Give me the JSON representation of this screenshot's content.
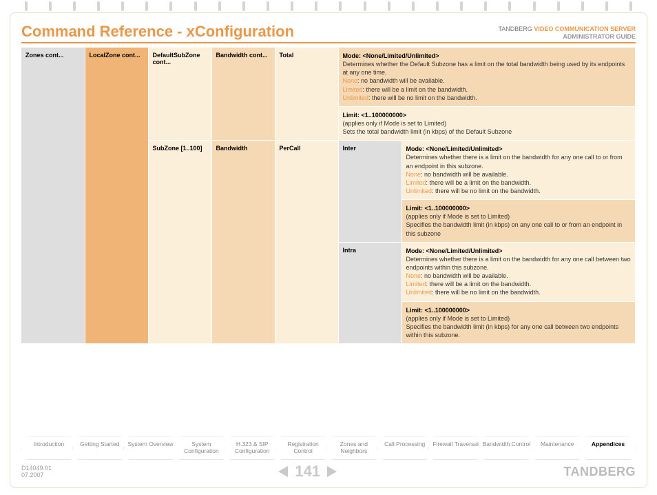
{
  "header": {
    "title": "Command Reference - xConfiguration",
    "product_line": "VIDEO COMMUNICATION SERVER",
    "brand_prefix": "TANDBERG",
    "guide_name": "ADMINISTRATOR GUIDE"
  },
  "colors": {
    "accent": "#e9984a",
    "grey": "#dedede",
    "orange": "#f0b477",
    "cream": "#fcefda",
    "tan": "#f5d9b4",
    "border": "#eadfca",
    "text": "#333333"
  },
  "columns": {
    "c1": "Zones cont...",
    "c2": "LocalZone cont...",
    "c3a": "DefaultSubZone cont...",
    "c3b": "SubZone [1..100]",
    "c4a": "Bandwidth cont...",
    "c4b": "Bandwidth",
    "c5a": "Total",
    "c5b": "PerCall",
    "c6_inter": "Inter",
    "c6_intra": "Intra"
  },
  "blocks": {
    "total_mode": {
      "heading": "Mode: <None/Limited/Unlimited>",
      "body": "Determines whether the Default Subzone has a limit on the total bandwidth being used by its endpoints at any one time.",
      "none": "None",
      "none_txt": ": no bandwidth will be available.",
      "lim": "Limited",
      "lim_txt": ": there will be a limit on the bandwidth.",
      "unl": "Unlimited",
      "unl_txt": ": there will be no limit on the bandwidth."
    },
    "total_limit": {
      "heading": "Limit: <1..100000000>",
      "l1": "(applies only if Mode is set to Limited)",
      "l2": "Sets the total bandwidth limit (in kbps) of the Default Subzone"
    },
    "inter_mode": {
      "heading": "Mode: <None/Limited/Unlimited>",
      "body": "Determines whether there is a limit on the bandwidth for any one call to or from an endpoint in this subzone.",
      "none": "None",
      "none_txt": ": no bandwidth will be available.",
      "lim": "Limited",
      "lim_txt": ": there will be a limit on the bandwidth.",
      "unl": "Unlimited",
      "unl_txt": ": there will be no limit on the bandwidth."
    },
    "inter_limit": {
      "heading": "Limit: <1..100000000>",
      "l1": "(applies only if Mode is set to Limited)",
      "l2": "Specifies the bandwidth limit (in kbps) on any one call to or from an endpoint in this subzone"
    },
    "intra_mode": {
      "heading": "Mode: <None/Limited/Unlimited>",
      "body": "Determines whether there is a limit on the bandwidth for any one call between two endpoints within this subzone.",
      "none": "None",
      "none_txt": ": no bandwidth will be available.",
      "lim": "Limited",
      "lim_txt": ": there will be a limit on the bandwidth.",
      "unl": "Unlimited",
      "unl_txt": ": there will be no limit on the bandwidth."
    },
    "intra_limit": {
      "heading": "Limit: <1..100000000>",
      "l1": "(applies only if Mode is set to Limited)",
      "l2": "Specifies the bandwidth limit (in kbps) for any one call between two endpoints within this subzone."
    }
  },
  "nav": [
    "Introduction",
    "Getting Started",
    "System Overview",
    "System Configuration",
    "H.323 & SIP Configuration",
    "Registration Control",
    "Zones and Neighbors",
    "Call Processing",
    "Firewall Traversal",
    "Bandwidth Control",
    "Maintenance",
    "Appendices"
  ],
  "footer": {
    "docid": "D14049.01",
    "date": "07.2007",
    "page": "141",
    "brand": "TANDBERG"
  }
}
